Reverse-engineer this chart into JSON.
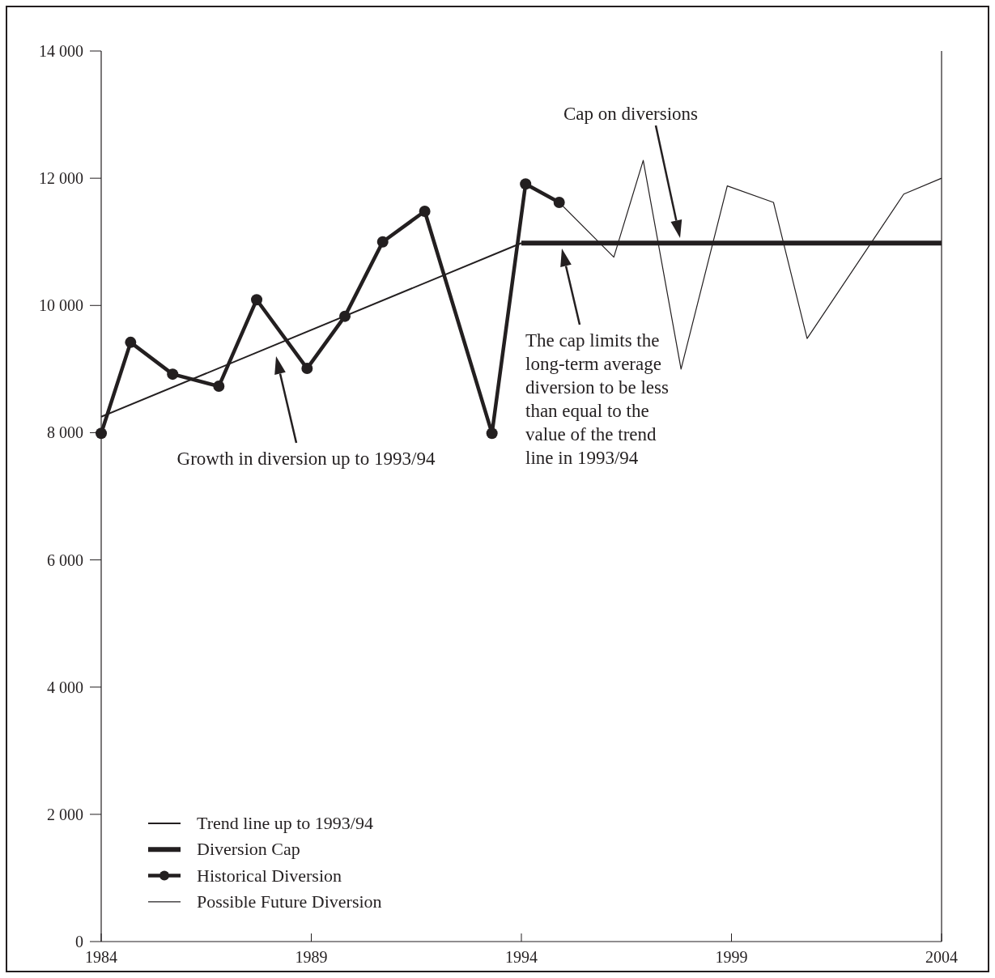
{
  "chart_data": {
    "type": "line",
    "xlim": [
      1984,
      2004
    ],
    "xticks": [
      1984,
      1989,
      1994,
      1999,
      2004
    ],
    "ylim": [
      0,
      14000
    ],
    "yticks": [
      {
        "value": 0,
        "label": "0"
      },
      {
        "value": 2000,
        "label": "2 000"
      },
      {
        "value": 4000,
        "label": "4 000"
      },
      {
        "value": 6000,
        "label": "6 000"
      },
      {
        "value": 8000,
        "label": "8 000"
      },
      {
        "value": 10000,
        "label": "10 000"
      },
      {
        "value": 12000,
        "label": "12 000"
      },
      {
        "value": 14000,
        "label": "14 000"
      }
    ],
    "grid": false,
    "legend": "bottom left",
    "series": [
      {
        "name": "Trend line up to 1993/94",
        "color": "#231f20",
        "x": [
          1984,
          1994
        ],
        "values": [
          8250,
          10980
        ]
      },
      {
        "name": "Diversion Cap",
        "color": "#231f20",
        "x": [
          1994,
          2004
        ],
        "values": [
          10980,
          10980
        ]
      },
      {
        "name": "Historical Diversion",
        "color": "#231f20",
        "marker": "circle",
        "x": [
          1984,
          1984.7,
          1985.7,
          1986.8,
          1987.7,
          1988.9,
          1989.8,
          1990.7,
          1991.7,
          1993.3,
          1994.1,
          1994.9
        ],
        "values": [
          7990,
          9420,
          8920,
          8730,
          10090,
          9010,
          9830,
          11000,
          11480,
          7990,
          11910,
          11620
        ]
      },
      {
        "name": "Possible Future Diversion",
        "color": "#231f20",
        "x": [
          1994.9,
          1996.2,
          1996.9,
          1997.8,
          1998.9,
          2000,
          2000.8,
          2003.1,
          2004
        ],
        "values": [
          11620,
          10760,
          12280,
          9000,
          11880,
          11620,
          9480,
          11750,
          12000
        ]
      }
    ],
    "annotations": [
      "Growth in diversion up to 1993/94",
      "Cap on diversions",
      "The cap limits the long-term average diversion to be less than equal to the value of the trend line in 1993/94"
    ]
  }
}
